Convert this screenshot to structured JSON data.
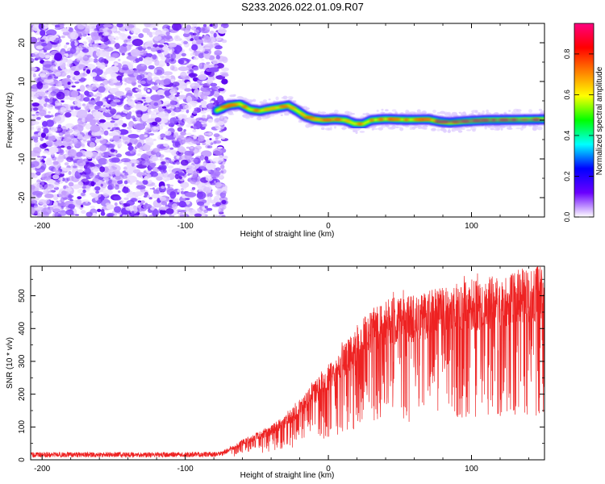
{
  "title": "S233.2026.022.01.09.R07",
  "chart_data": [
    {
      "type": "heatmap",
      "xlabel": "Height of straight line (km)",
      "ylabel": "Frequency (Hz)",
      "xlim": [
        -208,
        151
      ],
      "ylim": [
        -25,
        25
      ],
      "xticks": [
        -200,
        -100,
        0,
        100
      ],
      "yticks": [
        -20,
        -10,
        0,
        10,
        20
      ],
      "noise_region_x": [
        -208,
        -74
      ],
      "ridge": [
        {
          "x": -78,
          "y": 2.5
        },
        {
          "x": -70,
          "y": 3.8
        },
        {
          "x": -62,
          "y": 4.2
        },
        {
          "x": -55,
          "y": 2.8
        },
        {
          "x": -48,
          "y": 2.4
        },
        {
          "x": -40,
          "y": 3.0
        },
        {
          "x": -33,
          "y": 3.4
        },
        {
          "x": -28,
          "y": 3.8
        },
        {
          "x": -22,
          "y": 2.5
        },
        {
          "x": -16,
          "y": 1.0
        },
        {
          "x": -10,
          "y": 0.3
        },
        {
          "x": -4,
          "y": 0.0
        },
        {
          "x": 5,
          "y": 0.2
        },
        {
          "x": 12,
          "y": 0.0
        },
        {
          "x": 18,
          "y": -0.9
        },
        {
          "x": 24,
          "y": -1.0
        },
        {
          "x": 30,
          "y": 0.0
        },
        {
          "x": 40,
          "y": 0.3
        },
        {
          "x": 55,
          "y": 0.1
        },
        {
          "x": 70,
          "y": 0.2
        },
        {
          "x": 78,
          "y": -0.4
        },
        {
          "x": 85,
          "y": -0.6
        },
        {
          "x": 95,
          "y": -0.3
        },
        {
          "x": 110,
          "y": 0.0
        },
        {
          "x": 130,
          "y": 0.1
        },
        {
          "x": 151,
          "y": 0.2
        }
      ],
      "colorbar": {
        "label": "Normalized spectral amplitude",
        "range": [
          0.0,
          0.95
        ],
        "ticks": [
          0.0,
          0.2,
          0.4,
          0.6,
          0.8
        ],
        "tick_labels": [
          "0.0",
          "0.2",
          "0.4",
          "0.6",
          "0.8"
        ],
        "stops": [
          "#ffffff",
          "#6a00ff",
          "#0000ff",
          "#00ffff",
          "#00ff00",
          "#ffff00",
          "#ff8000",
          "#ff0000",
          "#ff0080"
        ]
      }
    },
    {
      "type": "line",
      "xlabel": "Height of straight line (km)",
      "ylabel": "SNR (10 * v/v)",
      "xlim": [
        -208,
        151
      ],
      "ylim": [
        0,
        590
      ],
      "xticks": [
        -200,
        -100,
        0,
        100
      ],
      "yticks": [
        0,
        100,
        200,
        300,
        400,
        500
      ],
      "color": "#ee2222",
      "series": [
        {
          "name": "SNR",
          "x": [
            -208,
            -190,
            -170,
            -150,
            -130,
            -110,
            -90,
            -75,
            -68,
            -60,
            -50,
            -40,
            -30,
            -20,
            -10,
            0,
            10,
            20,
            30,
            40,
            50,
            60,
            70,
            80,
            90,
            100,
            110,
            120,
            130,
            140,
            151
          ],
          "y": [
            15,
            16,
            15,
            16,
            15,
            16,
            16,
            17,
            35,
            55,
            75,
            95,
            125,
            165,
            215,
            260,
            315,
            375,
            420,
            440,
            455,
            460,
            470,
            480,
            490,
            500,
            505,
            515,
            525,
            535,
            540
          ]
        }
      ]
    }
  ]
}
